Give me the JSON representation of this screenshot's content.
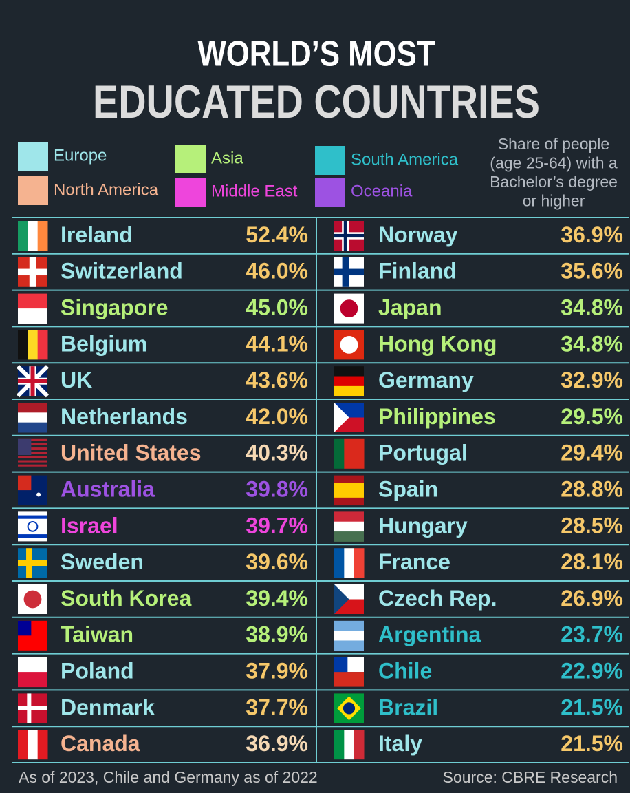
{
  "header": {
    "line1": "WORLD’S MOST",
    "line2": "EDUCATED COUNTRIES"
  },
  "legend": [
    {
      "label": "Europe",
      "color": "#9fe6ea",
      "value_color": "#f6c86a"
    },
    {
      "label": "Asia",
      "color": "#b6f07a",
      "value_color": "#b6f07a"
    },
    {
      "label": "South America",
      "color": "#2fbfca",
      "value_color": "#2fbfca"
    },
    {
      "label": "North America",
      "color": "#f5b390",
      "value_color": "#f6d9b4"
    },
    {
      "label": "Middle East",
      "color": "#ee45dc",
      "value_color": "#ee45dc"
    },
    {
      "label": "Oceania",
      "color": "#9d52e2",
      "value_color": "#9d52e2"
    }
  ],
  "note": [
    "Share of people",
    "(age 25-64) with a",
    "Bachelor’s degree",
    "or higher"
  ],
  "table": {
    "left": [
      {
        "country": "Ireland",
        "value": "52.4%",
        "region": "Europe"
      },
      {
        "country": "Switzerland",
        "value": "46.0%",
        "region": "Europe"
      },
      {
        "country": "Singapore",
        "value": "45.0%",
        "region": "Asia"
      },
      {
        "country": "Belgium",
        "value": "44.1%",
        "region": "Europe"
      },
      {
        "country": "UK",
        "value": "43.6%",
        "region": "Europe"
      },
      {
        "country": "Netherlands",
        "value": "42.0%",
        "region": "Europe"
      },
      {
        "country": "United States",
        "value": "40.3%",
        "region": "North America"
      },
      {
        "country": "Australia",
        "value": "39.8%",
        "region": "Oceania"
      },
      {
        "country": "Israel",
        "value": "39.7%",
        "region": "Middle East"
      },
      {
        "country": "Sweden",
        "value": "39.6%",
        "region": "Europe"
      },
      {
        "country": "South Korea",
        "value": "39.4%",
        "region": "Asia"
      },
      {
        "country": "Taiwan",
        "value": "38.9%",
        "region": "Asia"
      },
      {
        "country": "Poland",
        "value": "37.9%",
        "region": "Europe"
      },
      {
        "country": "Denmark",
        "value": "37.7%",
        "region": "Europe"
      },
      {
        "country": "Canada",
        "value": "36.9%",
        "region": "North America"
      }
    ],
    "right": [
      {
        "country": "Norway",
        "value": "36.9%",
        "region": "Europe"
      },
      {
        "country": "Finland",
        "value": "35.6%",
        "region": "Europe"
      },
      {
        "country": "Japan",
        "value": "34.8%",
        "region": "Asia"
      },
      {
        "country": "Hong Kong",
        "value": "34.8%",
        "region": "Asia"
      },
      {
        "country": "Germany",
        "value": "32.9%",
        "region": "Europe"
      },
      {
        "country": "Philippines",
        "value": "29.5%",
        "region": "Asia"
      },
      {
        "country": "Portugal",
        "value": "29.4%",
        "region": "Europe"
      },
      {
        "country": "Spain",
        "value": "28.8%",
        "region": "Europe"
      },
      {
        "country": "Hungary",
        "value": "28.5%",
        "region": "Europe"
      },
      {
        "country": "France",
        "value": "28.1%",
        "region": "Europe"
      },
      {
        "country": "Czech Rep.",
        "value": "26.9%",
        "region": "Europe"
      },
      {
        "country": "Argentina",
        "value": "23.7%",
        "region": "South America"
      },
      {
        "country": "Chile",
        "value": "22.9%",
        "region": "South America"
      },
      {
        "country": "Brazil",
        "value": "21.5%",
        "region": "South America"
      },
      {
        "country": "Italy",
        "value": "21.5%",
        "region": "Europe"
      }
    ]
  },
  "footer": {
    "note": "As of 2023, Chile and Germany as of 2022",
    "source": "Source: CBRE Research"
  }
}
